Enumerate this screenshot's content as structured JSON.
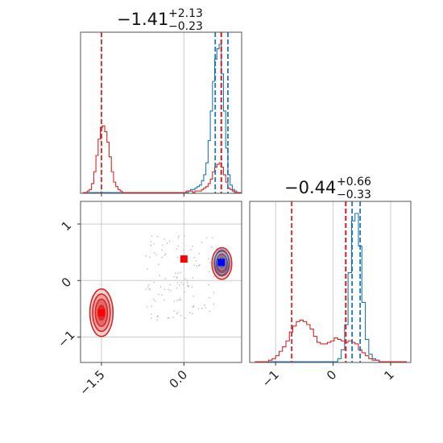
{
  "chart_data": {
    "type": "corner",
    "colors": {
      "series_a": "#1f77b4",
      "series_b": "#d62728",
      "marker_a": "#0000ff",
      "marker_b": "#ff0000"
    },
    "parameters": [
      {
        "title_value": "−1.41",
        "title_plus": "+2.13",
        "title_minus": "−0.23"
      },
      {
        "title_value": "−0.44",
        "title_plus": "+0.66",
        "title_minus": "−0.33"
      }
    ],
    "axes": {
      "param1_xlim": [
        -1.88,
        1.05
      ],
      "param2_xlim": [
        -1.45,
        1.35
      ],
      "param2_ylim": [
        -1.45,
        1.4
      ],
      "grid": true
    },
    "ticks": {
      "param1": [
        {
          "value": -1.5,
          "label": "−1.5"
        },
        {
          "value": 0.0,
          "label": "0.0"
        }
      ],
      "param2_y": [
        {
          "value": 1,
          "label": "1"
        },
        {
          "value": 0,
          "label": "0"
        },
        {
          "value": -1,
          "label": "−1"
        }
      ],
      "param2_x": [
        {
          "value": -1,
          "label": "−1"
        },
        {
          "value": 0,
          "label": "0"
        },
        {
          "value": 1,
          "label": "1"
        }
      ]
    },
    "quantile_lines": {
      "param1_series_b": [
        -1.5,
        0.68,
        0.68
      ],
      "param1_series_a": [
        0.57,
        0.68,
        0.8
      ],
      "param2_series_b": [
        -0.72,
        0.22,
        0.22
      ],
      "param2_series_a": [
        0.22,
        0.33,
        0.47
      ]
    },
    "hist_param1": {
      "bin_centers": [
        -1.82,
        -1.78,
        -1.74,
        -1.7,
        -1.66,
        -1.62,
        -1.58,
        -1.54,
        -1.5,
        -1.46,
        -1.42,
        -1.38,
        -1.34,
        -1.3,
        -1.26,
        -1.22,
        -1.18,
        -1.14,
        -1.1,
        -1.06,
        -1.02,
        -0.98,
        -0.94,
        -0.9,
        -0.86,
        -0.82,
        -0.78,
        -0.74,
        -0.7,
        -0.66,
        -0.62,
        -0.58,
        -0.54,
        -0.5,
        -0.46,
        -0.42,
        -0.38,
        -0.34,
        -0.3,
        -0.26,
        -0.22,
        -0.18,
        -0.14,
        -0.1,
        -0.06,
        -0.02,
        0.02,
        0.06,
        0.1,
        0.14,
        0.18,
        0.22,
        0.26,
        0.3,
        0.34,
        0.38,
        0.42,
        0.46,
        0.5,
        0.54,
        0.58,
        0.62,
        0.66,
        0.7,
        0.74,
        0.78,
        0.82,
        0.86,
        0.9,
        0.94,
        0.98,
        1.02
      ],
      "series_a": [
        0,
        0,
        0,
        0,
        0,
        0,
        0,
        0,
        0,
        0,
        0,
        0,
        0,
        0,
        0,
        0,
        0,
        0,
        0,
        0,
        0,
        0,
        0,
        0,
        0,
        0,
        0,
        0,
        0,
        0,
        0,
        0,
        0,
        0,
        0,
        0,
        0,
        0,
        0,
        0,
        0,
        0,
        0,
        0,
        0,
        0,
        0,
        0,
        0.01,
        0.02,
        0.02,
        0.03,
        0.04,
        0.05,
        0.08,
        0.12,
        0.2,
        0.35,
        0.55,
        0.75,
        0.9,
        0.97,
        1.0,
        0.8,
        0.55,
        0.3,
        0.12,
        0.05,
        0.02,
        0.01,
        0,
        0
      ],
      "series_b": [
        0,
        0,
        0.01,
        0.02,
        0.06,
        0.14,
        0.25,
        0.36,
        0.44,
        0.45,
        0.41,
        0.34,
        0.24,
        0.14,
        0.07,
        0.04,
        0.02,
        0.01,
        0,
        0,
        0,
        0,
        0,
        0,
        0,
        0,
        0,
        0,
        0,
        0,
        0,
        0,
        0,
        0,
        0,
        0,
        0,
        0,
        0,
        0,
        0,
        0,
        0,
        0,
        0,
        0,
        0,
        0.01,
        0.01,
        0.01,
        0,
        0.01,
        0.01,
        0.01,
        0.02,
        0.03,
        0.04,
        0.06,
        0.09,
        0.14,
        0.17,
        0.19,
        0.2,
        0.17,
        0.12,
        0.07,
        0.03,
        0.02,
        0.01,
        0,
        0,
        0
      ]
    },
    "hist_param2": {
      "bin_centers": [
        -1.33,
        -1.27,
        -1.21,
        -1.15,
        -1.09,
        -1.03,
        -0.97,
        -0.91,
        -0.85,
        -0.79,
        -0.73,
        -0.67,
        -0.61,
        -0.55,
        -0.49,
        -0.43,
        -0.37,
        -0.31,
        -0.25,
        -0.19,
        -0.13,
        -0.07,
        -0.01,
        0.05,
        0.11,
        0.17,
        0.23,
        0.29,
        0.35,
        0.41,
        0.47,
        0.53,
        0.59,
        0.65,
        0.71,
        0.77,
        0.83,
        0.89,
        0.95,
        1.01,
        1.07,
        1.13,
        1.19,
        1.25
      ],
      "series_a": [
        0,
        0,
        0,
        0,
        0,
        0,
        0,
        0,
        0,
        0,
        0,
        0,
        0,
        0,
        0,
        0,
        0,
        0,
        0,
        0,
        0,
        0,
        0,
        0,
        0.02,
        0.08,
        0.25,
        0.6,
        0.95,
        1.0,
        0.78,
        0.4,
        0.15,
        0.05,
        0.02,
        0.01,
        0,
        0,
        0,
        0,
        0,
        0,
        0,
        0
      ],
      "series_b": [
        0,
        0,
        0,
        0,
        0.01,
        0.02,
        0.04,
        0.07,
        0.1,
        0.14,
        0.2,
        0.24,
        0.27,
        0.28,
        0.27,
        0.25,
        0.22,
        0.17,
        0.13,
        0.12,
        0.12,
        0.13,
        0.14,
        0.16,
        0.15,
        0.14,
        0.13,
        0.14,
        0.13,
        0.12,
        0.08,
        0.06,
        0.04,
        0.02,
        0.01,
        0.01,
        0,
        0,
        0,
        0,
        0,
        0,
        0,
        0
      ]
    },
    "kde_contours": [
      {
        "series": "series_b",
        "center": [
          -1.5,
          -0.57
        ],
        "radii": [
          [
            0.21,
            0.42
          ],
          [
            0.16,
            0.33
          ],
          [
            0.11,
            0.24
          ],
          [
            0.06,
            0.13
          ]
        ]
      },
      {
        "series": "series_b",
        "center": [
          0.69,
          0.3
        ],
        "radii": [
          [
            0.18,
            0.28
          ],
          [
            0.14,
            0.22
          ],
          [
            0.1,
            0.16
          ]
        ]
      },
      {
        "series": "series_a",
        "center": [
          0.69,
          0.32
        ],
        "radii": [
          [
            0.13,
            0.22
          ],
          [
            0.09,
            0.15
          ],
          [
            0.05,
            0.09
          ]
        ]
      }
    ],
    "truth_markers": [
      {
        "series": "marker_b",
        "x": 0.0,
        "y": 0.38
      },
      {
        "series": "marker_a",
        "x": 0.68,
        "y": 0.32
      },
      {
        "series": "marker_b",
        "x": -1.5,
        "y": -0.57
      }
    ]
  }
}
